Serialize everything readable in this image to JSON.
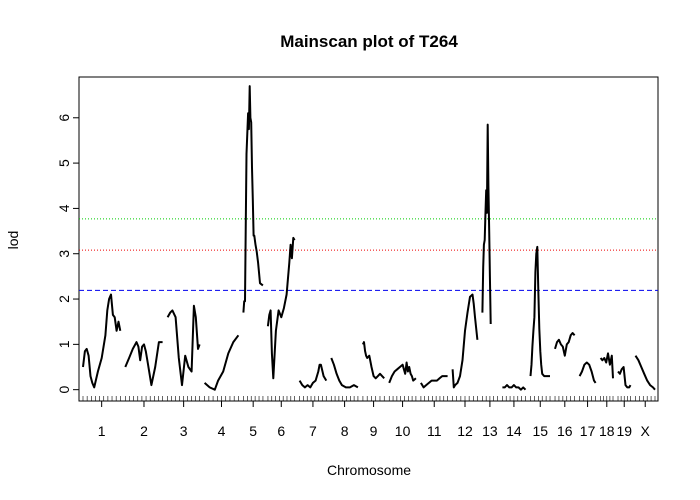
{
  "chart_data": {
    "type": "line",
    "title": "Mainscan plot of T264",
    "xlabel": "Chromosome",
    "ylabel": "lod",
    "ylim": [
      -0.25,
      6.9
    ],
    "yticks": [
      0,
      1,
      2,
      3,
      4,
      5,
      6
    ],
    "grid": false,
    "thresholds": [
      {
        "value": 3.77,
        "color": "#00cc00",
        "style": "dotted"
      },
      {
        "value": 3.08,
        "color": "#ee0000",
        "style": "dotted"
      },
      {
        "value": 2.19,
        "color": "#0000ee",
        "style": "dashed"
      }
    ],
    "chromosomes": [
      {
        "label": "1",
        "x": [
          0,
          0.05,
          0.1,
          0.15,
          0.2,
          0.25,
          0.3,
          0.4,
          0.5,
          0.6,
          0.65,
          0.7,
          0.75,
          0.8,
          0.85,
          0.9,
          0.95,
          1.0
        ],
        "lod": [
          0.5,
          0.85,
          0.9,
          0.75,
          0.3,
          0.15,
          0.05,
          0.4,
          0.7,
          1.2,
          1.75,
          2.0,
          2.1,
          1.65,
          1.6,
          1.3,
          1.5,
          1.3
        ]
      },
      {
        "label": "2",
        "x": [
          0,
          0.1,
          0.2,
          0.3,
          0.35,
          0.4,
          0.45,
          0.5,
          0.55,
          0.6,
          0.7,
          0.8,
          0.9,
          1.0
        ],
        "lod": [
          0.5,
          0.7,
          0.9,
          1.05,
          0.95,
          0.65,
          0.95,
          1.0,
          0.85,
          0.6,
          0.1,
          0.5,
          1.05,
          1.05
        ]
      },
      {
        "label": "3",
        "x": [
          0,
          0.08,
          0.15,
          0.25,
          0.35,
          0.45,
          0.55,
          0.65,
          0.75,
          0.82,
          0.88,
          0.95,
          1.0
        ],
        "lod": [
          1.6,
          1.7,
          1.75,
          1.6,
          0.7,
          0.1,
          0.75,
          0.5,
          0.4,
          1.85,
          1.6,
          0.9,
          1.0
        ]
      },
      {
        "label": "4",
        "x": [
          0,
          0.15,
          0.3,
          0.4,
          0.55,
          0.7,
          0.85,
          1.0
        ],
        "lod": [
          0.15,
          0.05,
          0.0,
          0.2,
          0.4,
          0.8,
          1.05,
          1.2
        ]
      },
      {
        "label": "5",
        "x": [
          0,
          0.04,
          0.08,
          0.12,
          0.16,
          0.2,
          0.24,
          0.28,
          0.32,
          0.36,
          0.4,
          0.44,
          0.48,
          0.52,
          0.56,
          0.62,
          0.68,
          0.75,
          0.85,
          1.0
        ],
        "lod": [
          1.7,
          1.95,
          1.95,
          3.5,
          5.2,
          5.65,
          6.1,
          5.75,
          6.7,
          6.0,
          5.9,
          4.9,
          4.2,
          3.4,
          3.4,
          3.2,
          3.05,
          2.8,
          2.35,
          2.3
        ]
      },
      {
        "label": "6",
        "x": [
          0,
          0.05,
          0.1,
          0.15,
          0.2,
          0.3,
          0.4,
          0.5,
          0.6,
          0.7,
          0.8,
          0.85,
          0.9,
          0.95,
          1.0
        ],
        "lod": [
          1.4,
          1.65,
          1.75,
          0.8,
          0.25,
          1.3,
          1.75,
          1.6,
          1.8,
          2.1,
          2.8,
          3.2,
          2.9,
          3.35,
          3.3
        ]
      },
      {
        "label": "7",
        "x": [
          0,
          0.1,
          0.2,
          0.3,
          0.4,
          0.5,
          0.6,
          0.7,
          0.75,
          0.8,
          0.9,
          1.0
        ],
        "lod": [
          0.2,
          0.1,
          0.05,
          0.1,
          0.05,
          0.15,
          0.2,
          0.4,
          0.55,
          0.55,
          0.3,
          0.2
        ]
      },
      {
        "label": "8",
        "x": [
          0,
          0.1,
          0.2,
          0.3,
          0.4,
          0.55,
          0.7,
          0.85,
          1.0
        ],
        "lod": [
          0.7,
          0.55,
          0.35,
          0.2,
          0.1,
          0.05,
          0.05,
          0.1,
          0.05
        ]
      },
      {
        "label": "9",
        "x": [
          0,
          0.05,
          0.1,
          0.15,
          0.2,
          0.3,
          0.4,
          0.5,
          0.6,
          0.7,
          0.8,
          0.9,
          1.0
        ],
        "lod": [
          1.0,
          1.05,
          0.85,
          0.75,
          0.7,
          0.75,
          0.5,
          0.3,
          0.25,
          0.3,
          0.35,
          0.3,
          0.25
        ]
      },
      {
        "label": "10",
        "x": [
          0,
          0.1,
          0.2,
          0.3,
          0.4,
          0.5,
          0.6,
          0.65,
          0.7,
          0.75,
          0.8,
          0.85,
          0.9,
          1.0
        ],
        "lod": [
          0.15,
          0.3,
          0.4,
          0.45,
          0.5,
          0.55,
          0.35,
          0.6,
          0.4,
          0.5,
          0.35,
          0.3,
          0.2,
          0.25
        ]
      },
      {
        "label": "11",
        "x": [
          0,
          0.1,
          0.2,
          0.3,
          0.4,
          0.5,
          0.6,
          0.7,
          0.8,
          0.9,
          1.0
        ],
        "lod": [
          0.15,
          0.05,
          0.1,
          0.15,
          0.2,
          0.2,
          0.2,
          0.25,
          0.3,
          0.3,
          0.3
        ]
      },
      {
        "label": "12",
        "x": [
          0,
          0.05,
          0.1,
          0.2,
          0.3,
          0.4,
          0.5,
          0.6,
          0.7,
          0.8,
          0.85,
          0.9,
          1.0
        ],
        "lod": [
          0.45,
          0.05,
          0.1,
          0.15,
          0.3,
          0.65,
          1.3,
          1.7,
          2.05,
          2.1,
          1.9,
          1.6,
          1.1
        ]
      },
      {
        "label": "13",
        "x": [
          0,
          0.05,
          0.1,
          0.15,
          0.2,
          0.25,
          0.3,
          0.35,
          0.4,
          0.45,
          0.5,
          0.55,
          0.6,
          0.65,
          0.7,
          0.75,
          0.8,
          0.85,
          0.9,
          0.95,
          1.0
        ],
        "lod": [
          1.7,
          2.7,
          3.2,
          3.3,
          3.85,
          4.4,
          3.9,
          5.85,
          4.5,
          3.5,
          2.5,
          1.45,
          null,
          null,
          null,
          null,
          null,
          null,
          null,
          null,
          null
        ]
      },
      {
        "label": "14",
        "x": [
          0,
          0.1,
          0.2,
          0.3,
          0.4,
          0.5,
          0.6,
          0.7,
          0.8,
          0.9,
          1.0
        ],
        "lod": [
          0.05,
          0.05,
          0.1,
          0.05,
          0.05,
          0.1,
          0.05,
          0.05,
          0.0,
          0.05,
          0.0
        ]
      },
      {
        "label": "15",
        "x": [
          0,
          0.05,
          0.1,
          0.15,
          0.2,
          0.25,
          0.3,
          0.35,
          0.4,
          0.45,
          0.5,
          0.55,
          0.6,
          0.7,
          0.8,
          0.9,
          1.0
        ],
        "lod": [
          0.3,
          0.55,
          0.95,
          1.3,
          1.6,
          2.6,
          3.0,
          3.15,
          2.2,
          1.35,
          0.85,
          0.55,
          0.35,
          0.3,
          0.3,
          0.3,
          0.3
        ]
      },
      {
        "label": "16",
        "x": [
          0,
          0.1,
          0.2,
          0.3,
          0.4,
          0.5,
          0.6,
          0.7,
          0.8,
          0.9,
          1.0
        ],
        "lod": [
          0.9,
          1.05,
          1.1,
          1.0,
          0.95,
          0.75,
          1.0,
          1.05,
          1.2,
          1.25,
          1.2
        ]
      },
      {
        "label": "17",
        "x": [
          0,
          0.15,
          0.3,
          0.45,
          0.6,
          0.75,
          0.9,
          1.0
        ],
        "lod": [
          0.3,
          0.4,
          0.55,
          0.6,
          0.55,
          0.4,
          0.2,
          0.15
        ]
      },
      {
        "label": "18",
        "x": [
          0,
          0.15,
          0.3,
          0.45,
          0.6,
          0.75,
          0.9,
          1.0
        ],
        "lod": [
          0.7,
          0.65,
          0.7,
          0.6,
          0.8,
          0.55,
          0.75,
          0.25
        ]
      },
      {
        "label": "19",
        "x": [
          0,
          0.15,
          0.3,
          0.45,
          0.6,
          0.75,
          0.9,
          1.0
        ],
        "lod": [
          0.4,
          0.35,
          0.45,
          0.5,
          0.1,
          0.05,
          0.05,
          0.1
        ]
      },
      {
        "label": "X",
        "x": [
          0,
          0.15,
          0.3,
          0.45,
          0.6,
          0.75,
          0.9,
          1.0
        ],
        "lod": [
          0.75,
          0.65,
          0.5,
          0.35,
          0.2,
          0.1,
          0.05,
          0.0
        ]
      }
    ]
  }
}
